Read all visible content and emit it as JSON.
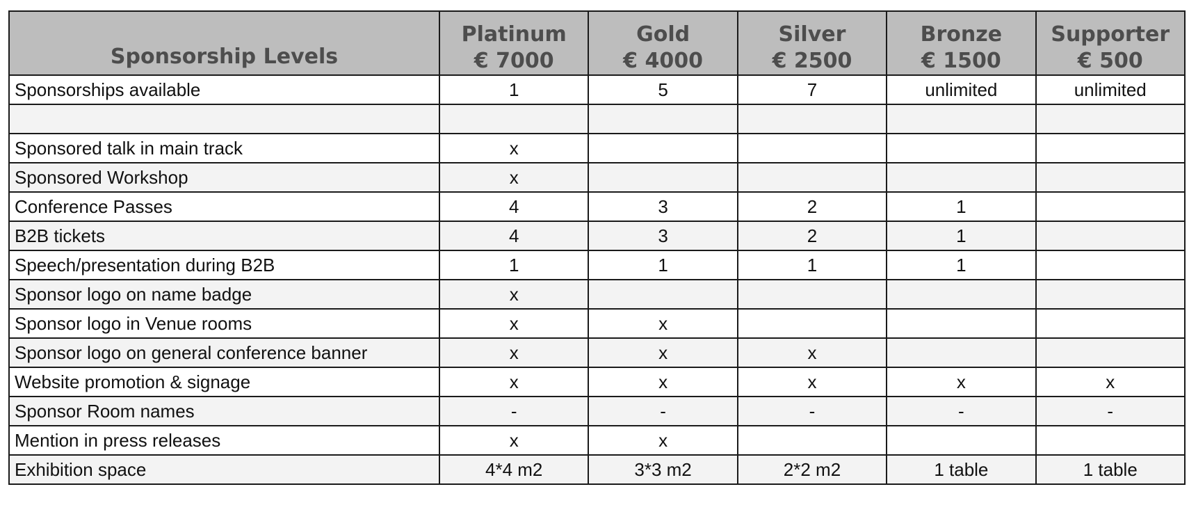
{
  "table": {
    "header": {
      "title": "Sponsorship Levels",
      "tiers": [
        {
          "name": "Platinum",
          "price": "€ 7000"
        },
        {
          "name": "Gold",
          "price": "€ 4000"
        },
        {
          "name": "Silver",
          "price": "€ 2500"
        },
        {
          "name": "Bronze",
          "price": "€ 1500"
        },
        {
          "name": "Supporter",
          "price": "€ 500"
        }
      ]
    },
    "rows": [
      {
        "label": "Sponsorships available",
        "cells": [
          "1",
          "5",
          "7",
          "unlimited",
          "unlimited"
        ]
      },
      {
        "label": "",
        "cells": [
          "",
          "",
          "",
          "",
          ""
        ]
      },
      {
        "label": "Sponsored talk in main track",
        "cells": [
          "x",
          "",
          "",
          "",
          ""
        ]
      },
      {
        "label": "Sponsored Workshop",
        "cells": [
          "x",
          "",
          "",
          "",
          ""
        ]
      },
      {
        "label": "Conference Passes",
        "cells": [
          "4",
          "3",
          "2",
          "1",
          ""
        ]
      },
      {
        "label": "B2B tickets",
        "cells": [
          "4",
          "3",
          "2",
          "1",
          ""
        ]
      },
      {
        "label": "Speech/presentation during B2B",
        "cells": [
          "1",
          "1",
          "1",
          "1",
          ""
        ]
      },
      {
        "label": "Sponsor logo on name badge",
        "cells": [
          "x",
          "",
          "",
          "",
          ""
        ]
      },
      {
        "label": "Sponsor logo in Venue rooms",
        "cells": [
          "x",
          "x",
          "",
          "",
          ""
        ]
      },
      {
        "label": "Sponsor logo on general conference banner",
        "cells": [
          "x",
          "x",
          "x",
          "",
          ""
        ]
      },
      {
        "label": "Website promotion & signage",
        "cells": [
          "x",
          "x",
          "x",
          "x",
          "x"
        ]
      },
      {
        "label": "Sponsor Room names",
        "cells": [
          "-",
          "-",
          "-",
          "-",
          "-"
        ]
      },
      {
        "label": "Mention in press releases",
        "cells": [
          "x",
          "x",
          "",
          "",
          ""
        ]
      },
      {
        "label": "Exhibition space",
        "cells": [
          "4*4 m2",
          "3*3 m2",
          "2*2 m2",
          "1 table",
          "1 table"
        ]
      }
    ]
  }
}
